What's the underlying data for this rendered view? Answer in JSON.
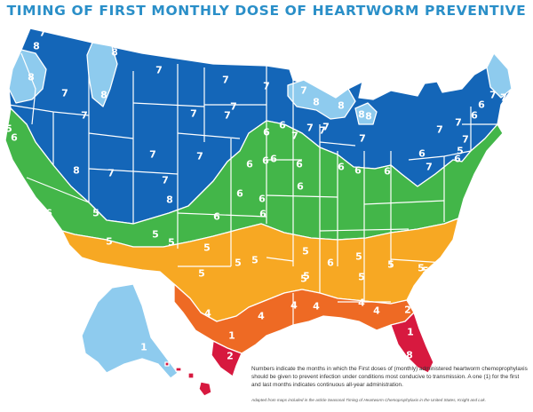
{
  "title": "TIMING OF FIRST MONTHLY DOSE OF HEARTWORM PREVENTIVE",
  "caption": "Numbers indicate the months in which the First doses of (monthly) administered heartworm chemoprophylaxis should be given to prevent infection under conditions most conducive to transmission. A one (1) for the first and last months indicates continuous all-year administration.",
  "source": "Adapted from maps included in the article Seasonal Timing of Heartworm Chemoprophylaxis in the United States, Knight and Lok.",
  "colors": {
    "m8": "#8ecbee",
    "m7": "#1466b8",
    "m6": "#43b649",
    "m5": "#f7a823",
    "m4": "#ee6a24",
    "m2": "#d7193f",
    "m1": "#d7193f"
  },
  "labels": [
    {
      "text": "7"
    },
    {
      "text": "8"
    },
    {
      "text": "8"
    },
    {
      "text": "8"
    },
    {
      "text": "7"
    },
    {
      "text": "7"
    },
    {
      "text": "8"
    },
    {
      "text": "7"
    },
    {
      "text": "7"
    },
    {
      "text": "7"
    },
    {
      "text": "7"
    },
    {
      "text": "7"
    },
    {
      "text": "8"
    },
    {
      "text": "8"
    },
    {
      "text": "7"
    },
    {
      "text": "6"
    },
    {
      "text": "7"
    },
    {
      "text": "7"
    },
    {
      "text": "8"
    },
    {
      "text": "7"
    },
    {
      "text": "7"
    },
    {
      "text": "8"
    },
    {
      "text": "7"
    },
    {
      "text": "7"
    },
    {
      "text": "8"
    },
    {
      "text": "7"
    },
    {
      "text": "7"
    },
    {
      "text": "7"
    },
    {
      "text": "6"
    },
    {
      "text": "6"
    },
    {
      "text": "7"
    },
    {
      "text": "7"
    },
    {
      "text": "7"
    },
    {
      "text": "6"
    },
    {
      "text": "8"
    },
    {
      "text": "7"
    },
    {
      "text": "7"
    },
    {
      "text": "7"
    },
    {
      "text": "6"
    },
    {
      "text": "6"
    },
    {
      "text": "6"
    },
    {
      "text": "6"
    },
    {
      "text": "6"
    },
    {
      "text": "6"
    },
    {
      "text": "6"
    },
    {
      "text": "5"
    },
    {
      "text": "6"
    },
    {
      "text": "7"
    },
    {
      "text": "5"
    },
    {
      "text": "7"
    },
    {
      "text": "6"
    },
    {
      "text": "6"
    },
    {
      "text": "6"
    },
    {
      "text": "6"
    },
    {
      "text": "6"
    },
    {
      "text": "6"
    },
    {
      "text": "6"
    },
    {
      "text": "6"
    },
    {
      "text": "6"
    },
    {
      "text": "6"
    },
    {
      "text": "6"
    },
    {
      "text": "6"
    },
    {
      "text": "5"
    },
    {
      "text": "5"
    },
    {
      "text": "6"
    },
    {
      "text": "5"
    },
    {
      "text": "5"
    },
    {
      "text": "5"
    },
    {
      "text": "5"
    },
    {
      "text": "5"
    },
    {
      "text": "5"
    },
    {
      "text": "5"
    },
    {
      "text": "5"
    },
    {
      "text": "5"
    },
    {
      "text": "5"
    },
    {
      "text": "5"
    },
    {
      "text": "5"
    },
    {
      "text": "5"
    },
    {
      "text": "5"
    },
    {
      "text": "4"
    },
    {
      "text": "4"
    },
    {
      "text": "4"
    },
    {
      "text": "4"
    },
    {
      "text": "4"
    },
    {
      "text": "4"
    },
    {
      "text": "2"
    },
    {
      "text": "1"
    },
    {
      "text": "2"
    },
    {
      "text": "1"
    },
    {
      "text": "8"
    },
    {
      "text": "1"
    }
  ]
}
